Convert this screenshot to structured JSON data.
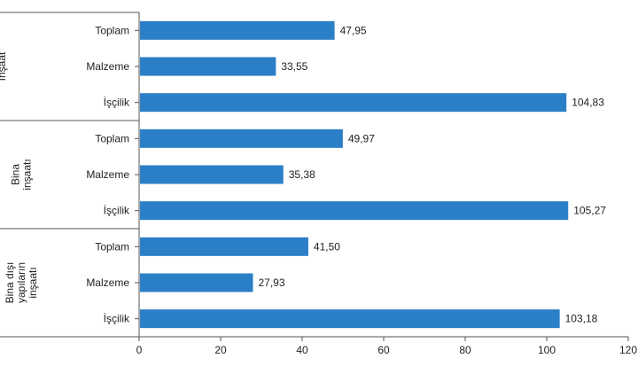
{
  "chart_data": {
    "type": "bar",
    "orientation": "horizontal",
    "xlim": [
      0,
      120
    ],
    "x_ticks": [
      "0",
      "20",
      "40",
      "60",
      "80",
      "100",
      "120"
    ],
    "bar_color": "#2a7fc6",
    "groups": [
      {
        "label_lines": [
          "İnşaat"
        ],
        "categories": [
          "Toplam",
          "Malzeme",
          "İşçilik"
        ],
        "values": [
          47.95,
          33.55,
          104.83
        ],
        "value_labels": [
          "47,95",
          "33,55",
          "104,83"
        ]
      },
      {
        "label_lines": [
          "Bina",
          "inşaatı"
        ],
        "categories": [
          "Toplam",
          "Malzeme",
          "İşçilik"
        ],
        "values": [
          49.97,
          35.38,
          105.27
        ],
        "value_labels": [
          "49,97",
          "35,38",
          "105,27"
        ]
      },
      {
        "label_lines": [
          "Bina dışı",
          "yapıların",
          "inşaatı"
        ],
        "categories": [
          "Toplam",
          "Malzeme",
          "İşçilik"
        ],
        "values": [
          41.5,
          27.93,
          103.18
        ],
        "value_labels": [
          "41,50",
          "27,93",
          "103,18"
        ]
      }
    ]
  }
}
